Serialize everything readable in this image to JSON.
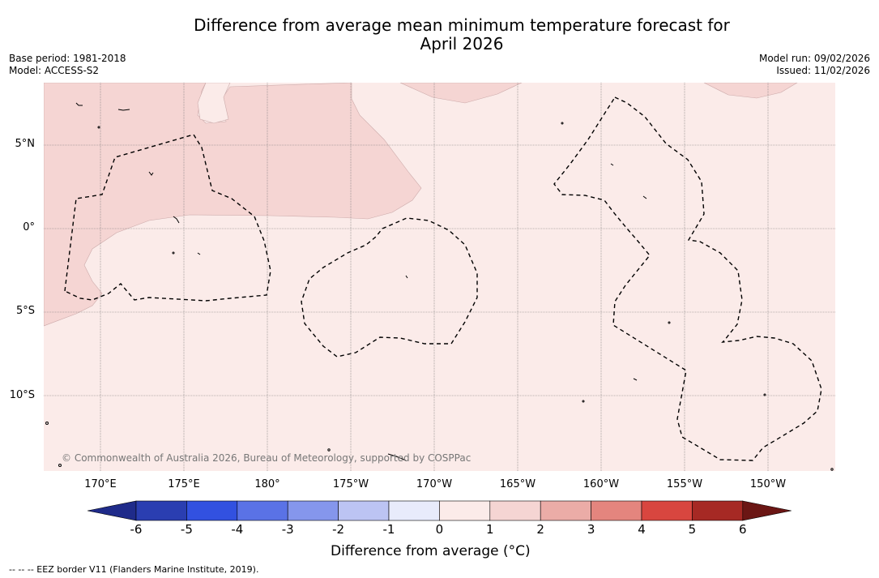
{
  "title_line1": "Difference from average mean minimum temperature forecast for",
  "title_line2": "April 2026",
  "base_period": "Base period: 1981-2018",
  "model": "Model: ACCESS-S2",
  "model_run": "Model run: 09/02/2026",
  "issued": "Issued: 11/02/2026",
  "copyright": "© Commonwealth of Australia 2026, Bureau of Meteorology, supported by COSPPac",
  "lat_labels": [
    "5°N",
    "0°",
    "5°S",
    "10°S"
  ],
  "lon_labels": [
    "170°E",
    "175°E",
    "180°",
    "175°W",
    "170°W",
    "165°W",
    "160°W",
    "155°W",
    "150°W"
  ],
  "colorbar": {
    "label": "Difference from average (°C)",
    "ticks": [
      "-6",
      "-5",
      "-4",
      "-3",
      "-2",
      "-1",
      "0",
      "1",
      "2",
      "3",
      "4",
      "5",
      "6"
    ],
    "colors": [
      "#1f2b8a",
      "#2a3eb1",
      "#3251e0",
      "#5a72e6",
      "#8596ec",
      "#bcc4f3",
      "#e8ebfb",
      "#fbebe9",
      "#f5d5d3",
      "#ebaca7",
      "#e4857e",
      "#d8463f",
      "#a62924",
      "#6b1614"
    ]
  },
  "map_fill": {
    "low_anomaly": "#fbebe9",
    "high_anomaly": "#f5d5d3"
  },
  "eez_legend": "--  --  -- EEZ border V11 (Flanders Marine Institute, 2019)."
}
